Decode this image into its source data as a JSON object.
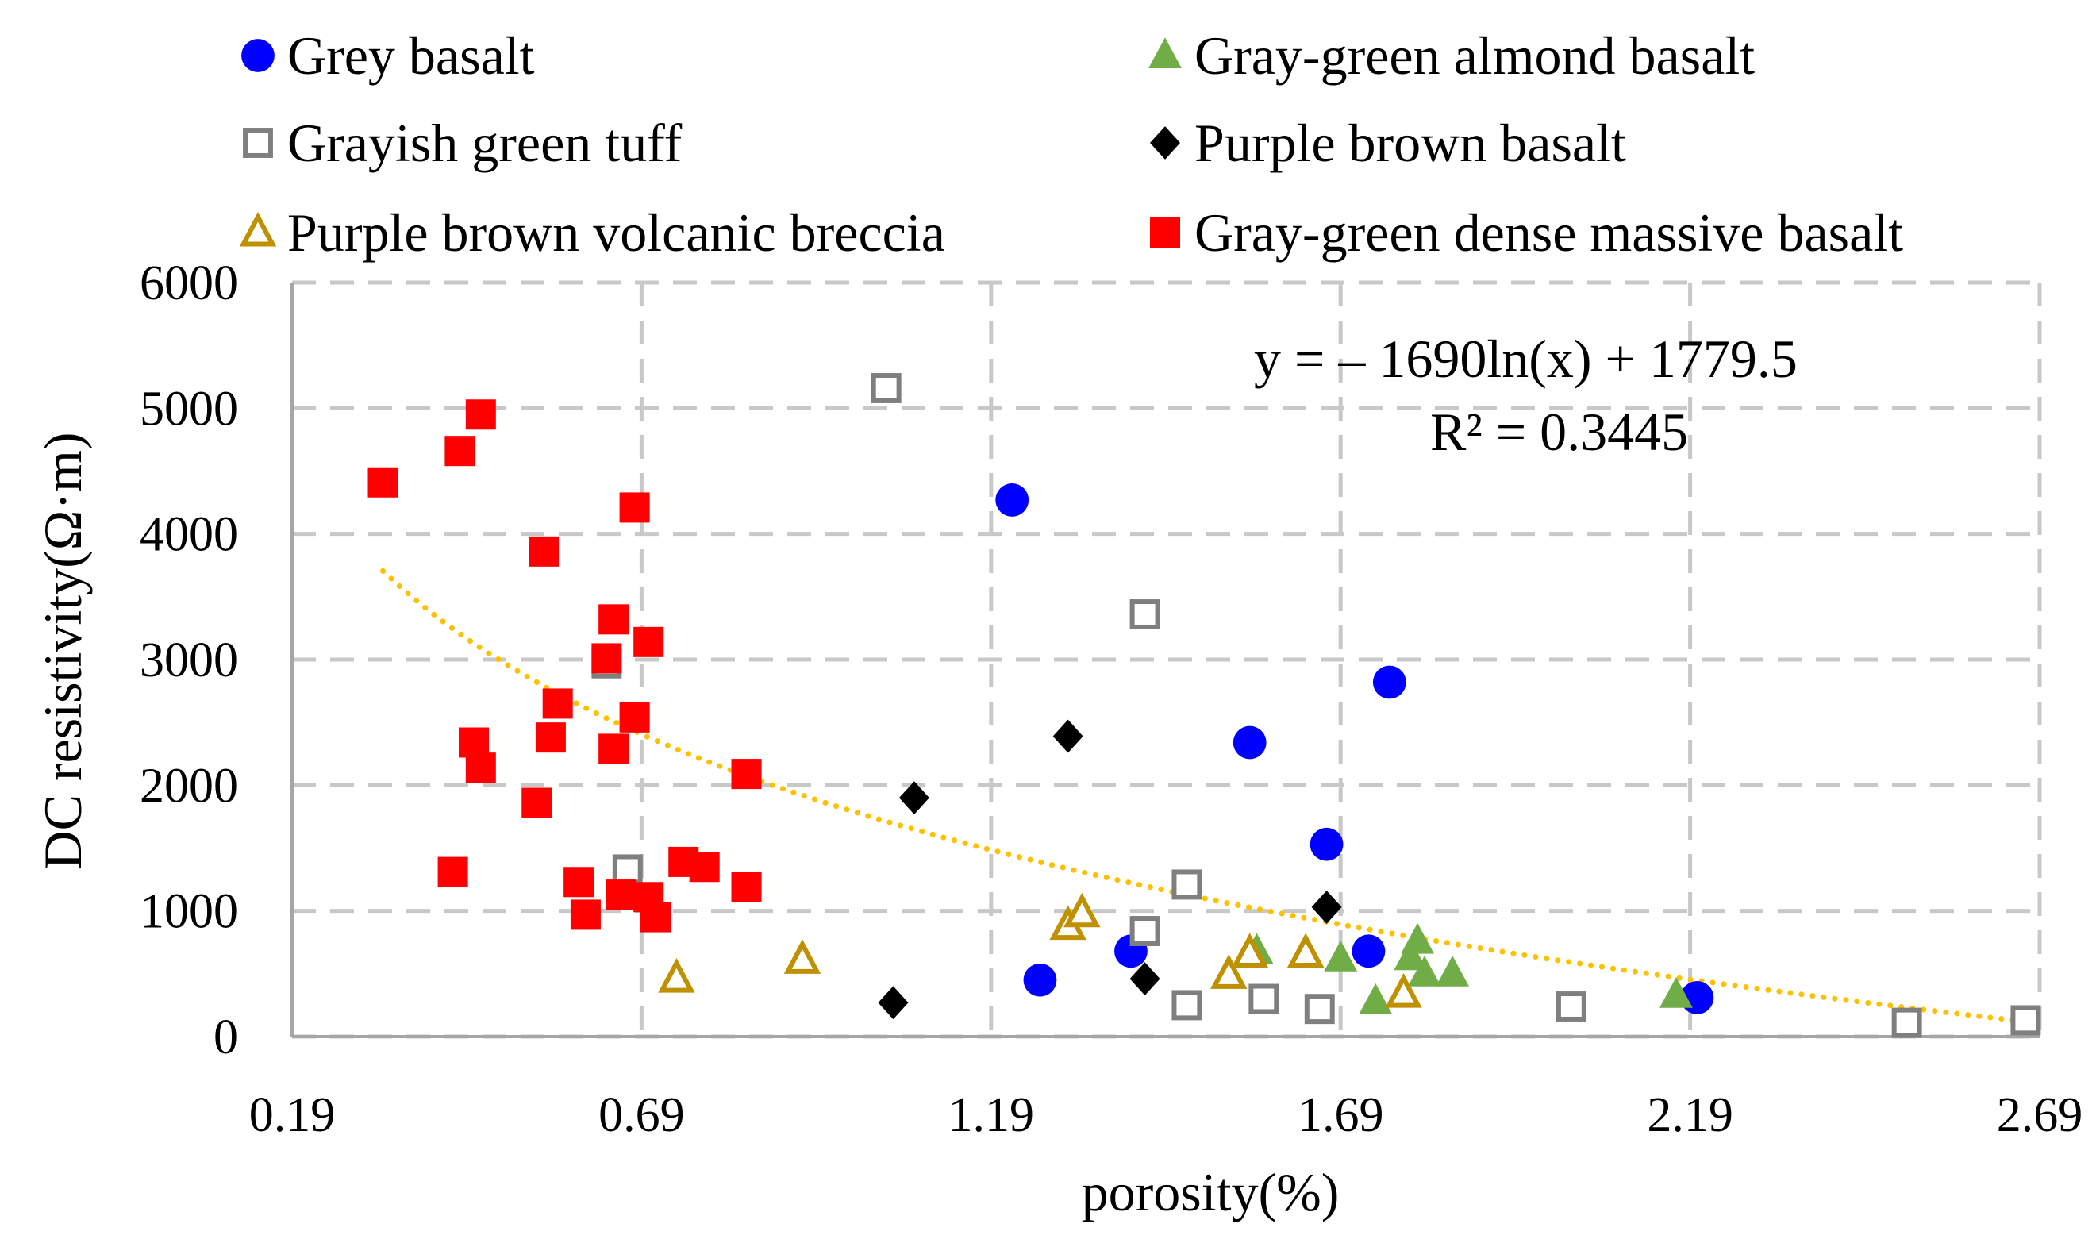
{
  "chart_data": {
    "type": "scatter",
    "title": "",
    "xlabel": "porosity(%)",
    "ylabel": "DC resistivity(Ω·m)",
    "xlim": [
      0.19,
      2.69
    ],
    "ylim": [
      0,
      6000
    ],
    "x_ticks": [
      "0.19",
      "0.69",
      "1.19",
      "1.69",
      "2.19",
      "2.69"
    ],
    "y_ticks": [
      "0",
      "1000",
      "2000",
      "3000",
      "4000",
      "5000",
      "6000"
    ],
    "grid": true,
    "legend_position": "top",
    "series": [
      {
        "name": "Grey basalt",
        "marker": "circle-filled",
        "color": "#0000ff",
        "points": [
          [
            1.22,
            4270
          ],
          [
            1.26,
            450
          ],
          [
            1.39,
            680
          ],
          [
            1.56,
            2340
          ],
          [
            1.67,
            1530
          ],
          [
            1.73,
            680
          ],
          [
            1.76,
            2820
          ],
          [
            2.2,
            310
          ]
        ]
      },
      {
        "name": "Gray-green almond basalt",
        "marker": "triangle-filled",
        "color": "#70ad47",
        "points": [
          [
            1.69,
            620
          ],
          [
            1.74,
            280
          ],
          [
            1.79,
            630
          ],
          [
            1.8,
            760
          ],
          [
            1.81,
            500
          ],
          [
            1.85,
            500
          ],
          [
            2.17,
            330
          ],
          [
            1.57,
            680
          ]
        ]
      },
      {
        "name": "Grayish green tuff",
        "marker": "square-open",
        "color": "#7f7f7f",
        "points": [
          [
            1.04,
            5160
          ],
          [
            0.64,
            2970
          ],
          [
            0.67,
            1330
          ],
          [
            1.41,
            3360
          ],
          [
            1.41,
            840
          ],
          [
            1.47,
            1210
          ],
          [
            1.47,
            250
          ],
          [
            1.58,
            300
          ],
          [
            1.66,
            220
          ],
          [
            2.02,
            240
          ],
          [
            2.5,
            110
          ],
          [
            2.67,
            130
          ]
        ]
      },
      {
        "name": "Purple brown basalt",
        "marker": "diamond-filled",
        "color": "#000000",
        "points": [
          [
            1.08,
            1900
          ],
          [
            1.05,
            270
          ],
          [
            1.3,
            2390
          ],
          [
            1.41,
            460
          ],
          [
            1.67,
            1030
          ]
        ]
      },
      {
        "name": "Purple brown volcanic breccia",
        "marker": "triangle-open",
        "color": "#bf9000",
        "points": [
          [
            0.74,
            460
          ],
          [
            0.92,
            610
          ],
          [
            1.3,
            880
          ],
          [
            1.32,
            980
          ],
          [
            1.53,
            490
          ],
          [
            1.56,
            660
          ],
          [
            1.64,
            660
          ],
          [
            1.78,
            340
          ]
        ]
      },
      {
        "name": "Gray-green dense massive basalt",
        "marker": "square-filled",
        "color": "#ff0000",
        "points": [
          [
            0.32,
            4410
          ],
          [
            0.43,
            4660
          ],
          [
            0.46,
            4950
          ],
          [
            0.55,
            3860
          ],
          [
            0.68,
            4210
          ],
          [
            0.65,
            3320
          ],
          [
            0.64,
            3010
          ],
          [
            0.7,
            3140
          ],
          [
            0.68,
            2540
          ],
          [
            0.57,
            2650
          ],
          [
            0.56,
            2380
          ],
          [
            0.65,
            2290
          ],
          [
            0.45,
            2340
          ],
          [
            0.46,
            2140
          ],
          [
            0.84,
            2090
          ],
          [
            0.54,
            1860
          ],
          [
            0.42,
            1310
          ],
          [
            0.6,
            1230
          ],
          [
            0.61,
            970
          ],
          [
            0.66,
            1130
          ],
          [
            0.7,
            1110
          ],
          [
            0.71,
            950
          ],
          [
            0.75,
            1390
          ],
          [
            0.78,
            1350
          ],
          [
            0.84,
            1190
          ]
        ]
      }
    ],
    "trendline": {
      "type": "log",
      "equation": "y = – 1690ln(x) + 1779.5",
      "r2": "R² = 0.3445",
      "a": -1690,
      "b": 1779.5,
      "x_range": [
        0.32,
        2.67
      ],
      "color": "#ffc000",
      "style": "dotted"
    }
  }
}
